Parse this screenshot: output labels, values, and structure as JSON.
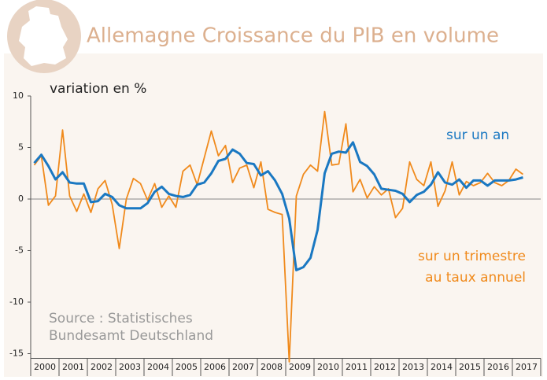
{
  "chart_data": {
    "type": "line",
    "title": "Allemagne Croissance du PIB en volume",
    "y_label": "variation en %",
    "source": [
      "Source : Statistisches",
      "Bundesamt Deutschland"
    ],
    "x": [
      2000.125,
      2000.375,
      2000.625,
      2000.875,
      2001.125,
      2001.375,
      2001.625,
      2001.875,
      2002.125,
      2002.375,
      2002.625,
      2002.875,
      2003.125,
      2003.375,
      2003.625,
      2003.875,
      2004.125,
      2004.375,
      2004.625,
      2004.875,
      2005.125,
      2005.375,
      2005.625,
      2005.875,
      2006.125,
      2006.375,
      2006.625,
      2006.875,
      2007.125,
      2007.375,
      2007.625,
      2007.875,
      2008.125,
      2008.375,
      2008.625,
      2008.875,
      2009.125,
      2009.375,
      2009.625,
      2009.875,
      2010.125,
      2010.375,
      2010.625,
      2010.875,
      2011.125,
      2011.375,
      2011.625,
      2011.875,
      2012.125,
      2012.375,
      2012.625,
      2012.875,
      2013.125,
      2013.375,
      2013.625,
      2013.875,
      2014.125,
      2014.375,
      2014.625,
      2014.875,
      2015.125,
      2015.375,
      2015.625,
      2015.875,
      2016.125,
      2016.375,
      2016.625,
      2016.875,
      2017.125,
      2017.375
    ],
    "series": [
      {
        "name": "sur un trimestre au taux annuel",
        "label_lines": [
          "sur un trimestre",
          "au taux annuel"
        ],
        "color": "#f08a1c",
        "values": [
          3.3,
          4.2,
          -0.6,
          0.3,
          6.7,
          0.3,
          -1.2,
          0.5,
          -1.3,
          1.0,
          1.8,
          -0.5,
          -4.8,
          0,
          2.0,
          1.5,
          -0.1,
          1.5,
          -0.8,
          0.3,
          -0.8,
          2.7,
          3.3,
          1.4,
          4.0,
          6.6,
          4.2,
          5.2,
          1.6,
          3.0,
          3.3,
          1.1,
          3.6,
          -1.0,
          -1.3,
          -1.5,
          -15.8,
          0.3,
          2.4,
          3.3,
          2.7,
          8.5,
          3.3,
          3.4,
          7.3,
          0.7,
          1.9,
          0.1,
          1.2,
          0.4,
          1.0,
          -1.8,
          -0.9,
          3.6,
          1.9,
          1.3,
          3.6,
          -0.7,
          0.8,
          3.6,
          0.4,
          1.7,
          1.3,
          1.6,
          2.5,
          1.6,
          1.3,
          1.8,
          2.9,
          2.4
        ]
      },
      {
        "name": "sur un an",
        "color": "#1a78c2",
        "values": [
          3.5,
          4.3,
          3.2,
          1.9,
          2.6,
          1.6,
          1.5,
          1.5,
          -0.3,
          -0.2,
          0.5,
          0.2,
          -0.6,
          -0.9,
          -0.9,
          -0.9,
          -0.4,
          0.7,
          1.2,
          0.5,
          0.3,
          0.2,
          0.4,
          1.4,
          1.6,
          2.5,
          3.7,
          3.9,
          4.8,
          4.4,
          3.5,
          3.4,
          2.3,
          2.7,
          1.8,
          0.5,
          -1.9,
          -6.9,
          -6.6,
          -5.7,
          -3.0,
          2.5,
          4.4,
          4.6,
          4.5,
          5.5,
          3.6,
          3.2,
          2.4,
          1.0,
          0.9,
          0.8,
          0.5,
          -0.3,
          0.4,
          0.7,
          1.4,
          2.6,
          1.6,
          1.4,
          1.9,
          1.1,
          1.8,
          1.8,
          1.3,
          1.8,
          1.8,
          1.8,
          1.9,
          2.1
        ]
      }
    ],
    "xlim": [
      2000,
      2018
    ],
    "xticks": [
      2000,
      2001,
      2002,
      2003,
      2004,
      2005,
      2006,
      2007,
      2008,
      2009,
      2010,
      2011,
      2012,
      2013,
      2014,
      2015,
      2016,
      2017
    ],
    "ylim": [
      -15,
      10
    ],
    "yticks": [
      10,
      5,
      0,
      -5,
      -10,
      -15
    ]
  }
}
